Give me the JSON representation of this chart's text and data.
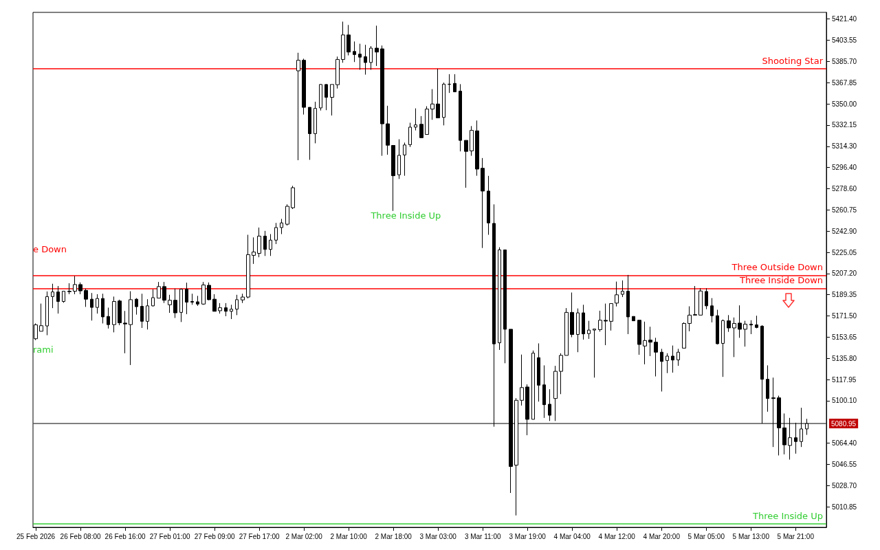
{
  "chart_data": {
    "type": "candlestick",
    "categories": [
      "25 Feb 2026",
      null,
      null,
      null,
      null,
      null,
      null,
      null,
      "26 Feb 08:00",
      null,
      null,
      null,
      null,
      null,
      null,
      null,
      "26 Feb 16:00",
      null,
      null,
      null,
      null,
      null,
      null,
      null,
      "27 Feb 01:00",
      null,
      null,
      null,
      null,
      null,
      null,
      null,
      "27 Feb 09:00",
      null,
      null,
      null,
      null,
      null,
      null,
      null,
      "27 Feb 17:00",
      null,
      null,
      null,
      null,
      null,
      null,
      null,
      "2 Mar 02:00",
      null,
      null,
      null,
      null,
      null,
      null,
      null,
      "2 Mar 10:00",
      null,
      null,
      null,
      null,
      null,
      null,
      null,
      "2 Mar 18:00",
      null,
      null,
      null,
      null,
      null,
      null,
      null,
      "3 Mar 03:00",
      null,
      null,
      null,
      null,
      null,
      null,
      null,
      "3 Mar 11:00",
      null,
      null,
      null,
      null,
      null,
      null,
      null,
      "3 Mar 19:00",
      null,
      null,
      null,
      null,
      null,
      null,
      null,
      "4 Mar 04:00",
      null,
      null,
      null,
      null,
      null,
      null,
      null,
      "4 Mar 12:00",
      null,
      null,
      null,
      null,
      null,
      null,
      null,
      "4 Mar 20:00",
      null,
      null,
      null,
      null,
      null,
      null,
      null,
      "5 Mar 05:00",
      null,
      null,
      null,
      null,
      null,
      null,
      null,
      "5 Mar 13:00",
      null,
      null,
      null,
      null,
      null,
      null,
      null,
      "5 Mar 21:00",
      null,
      null
    ],
    "ohlc": [
      [
        5152.3,
        5165.2,
        5151.2,
        5164.0
      ],
      [
        5158.6,
        5181.9,
        5158.6,
        5163.3
      ],
      [
        5163.1,
        5192.1,
        5155.3,
        5187.8
      ],
      [
        5187.8,
        5198.6,
        5178.1,
        5191.7
      ],
      [
        5191.7,
        5196.7,
        5173.5,
        5183.7
      ],
      [
        5183.7,
        5192.6,
        5182.6,
        5192.3
      ],
      [
        5191.9,
        5199.0,
        5189.8,
        5192.3
      ],
      [
        5192.3,
        5205.1,
        5189.8,
        5197.9
      ],
      [
        5197.9,
        5199.7,
        5189.8,
        5192.6
      ],
      [
        5193.0,
        5194.5,
        5179.1,
        5185.6
      ],
      [
        5185.6,
        5190.8,
        5167.6,
        5178.7
      ],
      [
        5178.7,
        5189.8,
        5173.5,
        5186.2
      ],
      [
        5186.2,
        5190.2,
        5165.2,
        5170.7
      ],
      [
        5171.1,
        5178.5,
        5160.9,
        5164.2
      ],
      [
        5164.2,
        5187.8,
        5157.7,
        5183.7
      ],
      [
        5184.1,
        5185.2,
        5163.7,
        5165.7
      ],
      [
        5165.5,
        5175.7,
        5140.1,
        5164.8
      ],
      [
        5164.2,
        5192.3,
        5130.2,
        5185.2
      ],
      [
        5185.6,
        5186.5,
        5172.6,
        5179.3
      ],
      [
        5179.6,
        5190.2,
        5161.4,
        5167.0
      ],
      [
        5167.0,
        5185.6,
        5160.1,
        5180.0
      ],
      [
        5180.0,
        5194.0,
        5179.5,
        5186.9
      ],
      [
        5186.5,
        5200.1,
        5186.5,
        5196.2
      ],
      [
        5196.2,
        5200.1,
        5182.4,
        5184.7
      ],
      [
        5180.9,
        5189.3,
        5174.1,
        5184.7
      ],
      [
        5184.7,
        5194.5,
        5169.8,
        5174.1
      ],
      [
        5174.5,
        5194.5,
        5166.4,
        5194.0
      ],
      [
        5194.0,
        5199.5,
        5173.0,
        5183.1
      ],
      [
        5183.7,
        5190.2,
        5180.9,
        5183.1
      ],
      [
        5183.4,
        5188.4,
        5180.0,
        5181.5
      ],
      [
        5181.5,
        5200.1,
        5180.9,
        5197.6
      ],
      [
        5197.3,
        5199.7,
        5184.7,
        5185.2
      ],
      [
        5185.6,
        5189.8,
        5175.4,
        5175.4
      ],
      [
        5175.9,
        5182.3,
        5173.5,
        5178.4
      ],
      [
        5178.4,
        5182.3,
        5171.3,
        5175.4
      ],
      [
        5175.4,
        5180.9,
        5168.9,
        5177.2
      ],
      [
        5177.2,
        5189.3,
        5172.2,
        5185.2
      ],
      [
        5185.0,
        5190.2,
        5182.4,
        5187.4
      ],
      [
        5187.4,
        5239.8,
        5186.3,
        5223.1
      ],
      [
        5222.5,
        5237.6,
        5215.3,
        5225.3
      ],
      [
        5224.2,
        5245.9,
        5220.9,
        5238.7
      ],
      [
        5238.7,
        5243.1,
        5222.0,
        5227.5
      ],
      [
        5227.5,
        5240.4,
        5222.0,
        5235.3
      ],
      [
        5235.3,
        5249.8,
        5232.0,
        5245.9
      ],
      [
        5245.9,
        5253.2,
        5240.4,
        5249.8
      ],
      [
        5248.7,
        5265.4,
        5247.6,
        5263.8
      ],
      [
        5262.6,
        5281.0,
        5261.5,
        5279.4
      ],
      [
        5377.8,
        5393.0,
        5302.6,
        5386.7
      ],
      [
        5386.7,
        5388.0,
        5341.0,
        5347.1
      ],
      [
        5347.1,
        5347.1,
        5302.9,
        5324.9
      ],
      [
        5324.9,
        5351.8,
        5316.8,
        5346.2
      ],
      [
        5346.6,
        5366.6,
        5344.4,
        5366.3
      ],
      [
        5366.3,
        5366.6,
        5344.7,
        5355.5
      ],
      [
        5355.5,
        5366.3,
        5340.2,
        5366.3
      ],
      [
        5366.1,
        5389.8,
        5362.9,
        5387.4
      ],
      [
        5387.4,
        5419.2,
        5384.6,
        5408.0
      ],
      [
        5408.0,
        5416.4,
        5390.8,
        5393.6
      ],
      [
        5394.1,
        5402.5,
        5385.2,
        5391.5
      ],
      [
        5391.9,
        5400.6,
        5378.7,
        5389.3
      ],
      [
        5389.7,
        5399.7,
        5374.6,
        5384.8
      ],
      [
        5384.8,
        5398.6,
        5378.7,
        5396.9
      ],
      [
        5396.9,
        5415.8,
        5381.9,
        5393.6
      ],
      [
        5396.3,
        5399.1,
        5306.3,
        5333.2
      ],
      [
        5333.2,
        5348.4,
        5307.2,
        5315.2
      ],
      [
        5315.0,
        5315.0,
        5259.9,
        5289.5
      ],
      [
        5290.3,
        5320.2,
        5286.8,
        5306.7
      ],
      [
        5307.0,
        5317.4,
        5289.5,
        5315.4
      ],
      [
        5315.6,
        5334.1,
        5313.7,
        5330.4
      ],
      [
        5330.4,
        5346.2,
        5327.7,
        5332.3
      ],
      [
        5332.8,
        5339.7,
        5321.5,
        5321.5
      ],
      [
        5324.3,
        5348.0,
        5324.3,
        5345.6
      ],
      [
        5345.6,
        5362.4,
        5336.6,
        5349.9
      ],
      [
        5349.9,
        5379.6,
        5338.2,
        5338.2
      ],
      [
        5338.6,
        5367.9,
        5331.9,
        5366.6
      ],
      [
        5366.4,
        5375.0,
        5359.2,
        5366.6
      ],
      [
        5367.2,
        5375.0,
        5360.1,
        5360.1
      ],
      [
        5360.7,
        5366.6,
        5310.0,
        5319.3
      ],
      [
        5319.3,
        5319.3,
        5279.4,
        5310.0
      ],
      [
        5310.4,
        5331.3,
        5306.3,
        5327.7
      ],
      [
        5327.3,
        5336.0,
        5289.5,
        5295.1
      ],
      [
        5295.8,
        5304.4,
        5228.7,
        5276.6
      ],
      [
        5276.6,
        5289.4,
        5239.8,
        5249.8
      ],
      [
        5249.4,
        5265.4,
        5078.3,
        5148.0
      ],
      [
        5148.9,
        5229.3,
        5142.9,
        5227.1
      ],
      [
        5227.1,
        5227.1,
        5131.7,
        5160.3
      ],
      [
        5160.3,
        5160.3,
        5022.5,
        5044.8
      ],
      [
        5045.9,
        5102.3,
        5003.6,
        5100.5
      ],
      [
        5100.5,
        5139.0,
        5096.1,
        5111.2
      ],
      [
        5111.7,
        5113.9,
        5071.1,
        5084.5
      ],
      [
        5084.5,
        5142.4,
        5084.5,
        5140.2
      ],
      [
        5136.4,
        5148.4,
        5099.4,
        5113.2
      ],
      [
        5113.5,
        5129.9,
        5085.7,
        5096.8
      ],
      [
        5097.2,
        5109.8,
        5083.1,
        5087.9
      ],
      [
        5102.0,
        5129.5,
        5083.1,
        5124.9
      ],
      [
        5124.9,
        5140.1,
        5105.7,
        5138.3
      ],
      [
        5138.3,
        5178.1,
        5138.3,
        5174.5
      ],
      [
        5174.5,
        5191.2,
        5153.6,
        5155.9
      ],
      [
        5155.9,
        5177.8,
        5141.0,
        5174.1
      ],
      [
        5174.1,
        5180.9,
        5151.6,
        5156.4
      ],
      [
        5156.6,
        5167.4,
        5152.2,
        5159.6
      ],
      [
        5159.6,
        5160.5,
        5119.6,
        5160.5
      ],
      [
        5160.0,
        5175.9,
        5158.3,
        5167.9
      ],
      [
        5167.8,
        5181.9,
        5146.9,
        5167.2
      ],
      [
        5167.0,
        5181.9,
        5159.2,
        5181.9
      ],
      [
        5182.3,
        5200.4,
        5179.5,
        5189.3
      ],
      [
        5189.7,
        5201.4,
        5187.4,
        5192.3
      ],
      [
        5192.3,
        5206.0,
        5156.2,
        5170.7
      ],
      [
        5171.1,
        5171.1,
        5167.4,
        5167.4
      ],
      [
        5167.9,
        5167.9,
        5138.8,
        5147.5
      ],
      [
        5146.2,
        5166.7,
        5130.8,
        5150.8
      ],
      [
        5151.2,
        5162.4,
        5137.7,
        5149.4
      ],
      [
        5149.4,
        5153.1,
        5120.6,
        5141.0
      ],
      [
        5141.0,
        5143.8,
        5107.9,
        5133.2
      ],
      [
        5134.0,
        5140.1,
        5123.4,
        5137.7
      ],
      [
        5137.7,
        5146.6,
        5123.8,
        5134.4
      ],
      [
        5134.5,
        5143.8,
        5129.5,
        5141.0
      ],
      [
        5144.4,
        5166.1,
        5144.4,
        5165.2
      ],
      [
        5165.2,
        5179.6,
        5158.6,
        5172.2
      ],
      [
        5172.6,
        5196.7,
        5172.2,
        5172.2
      ],
      [
        5172.2,
        5194.8,
        5172.2,
        5192.5
      ],
      [
        5192.1,
        5194.8,
        5177.2,
        5180.0
      ],
      [
        5180.0,
        5186.5,
        5166.1,
        5171.7
      ],
      [
        5171.7,
        5176.7,
        5147.5,
        5148.1
      ],
      [
        5148.4,
        5168.5,
        5120.2,
        5167.6
      ],
      [
        5167.4,
        5172.2,
        5158.1,
        5161.4
      ],
      [
        5161.4,
        5170.2,
        5136.9,
        5165.2
      ],
      [
        5165.5,
        5180.4,
        5153.1,
        5160.3
      ],
      [
        5160.3,
        5167.4,
        5145.7,
        5164.6
      ],
      [
        5164.6,
        5167.9,
        5156.2,
        5163.9
      ],
      [
        5164.0,
        5171.7,
        5161.1,
        5161.8
      ],
      [
        5162.9,
        5163.7,
        5081.0,
        5118.2
      ],
      [
        5118.2,
        5129.9,
        5090.9,
        5102.0
      ],
      [
        5102.6,
        5119.6,
        5061.2,
        5102.0
      ],
      [
        5102.6,
        5104.4,
        5054.1,
        5077.3
      ],
      [
        5077.3,
        5089.4,
        5055.0,
        5063.0
      ],
      [
        5062.5,
        5085.7,
        5050.6,
        5069.0
      ],
      [
        5069.0,
        5081.6,
        5055.6,
        5065.8
      ],
      [
        5065.8,
        5094.2,
        5061.2,
        5076.4
      ],
      [
        5076.4,
        5084.9,
        5071.4,
        5080.95
      ]
    ],
    "ylim": [
      4993.6,
      5427.0
    ],
    "yticks": [
      {
        "value": 5421.4,
        "label": "5421.40"
      },
      {
        "value": 5403.55,
        "label": "5403.55"
      },
      {
        "value": 5385.7,
        "label": "5385.70"
      },
      {
        "value": 5367.85,
        "label": "5367.85"
      },
      {
        "value": 5350,
        "label": "5350.00"
      },
      {
        "value": 5332.15,
        "label": "5332.15"
      },
      {
        "value": 5314.3,
        "label": "5314.30"
      },
      {
        "value": 5296.4,
        "label": "5296.40"
      },
      {
        "value": 5278.6,
        "label": "5278.60"
      },
      {
        "value": 5260.75,
        "label": "5260.75"
      },
      {
        "value": 5242.9,
        "label": "5242.90"
      },
      {
        "value": 5225.05,
        "label": "5225.05"
      },
      {
        "value": 5207.2,
        "label": "5207.20"
      },
      {
        "value": 5189.35,
        "label": "5189.35"
      },
      {
        "value": 5171.5,
        "label": "5171.50"
      },
      {
        "value": 5153.65,
        "label": "5153.65"
      },
      {
        "value": 5135.8,
        "label": "5135.80"
      },
      {
        "value": 5117.95,
        "label": "5117.95"
      },
      {
        "value": 5100.1,
        "label": "5100.10"
      },
      {
        "value": 5064.4,
        "label": "5064.40"
      },
      {
        "value": 5046.55,
        "label": "5046.55"
      },
      {
        "value": 5028.7,
        "label": "5028.70"
      },
      {
        "value": 5010.85,
        "label": "5010.85"
      }
    ],
    "ref_lines": [
      {
        "axis": "y",
        "value": 5379.6,
        "label": "Shooting Star",
        "color": "#ff0000"
      },
      {
        "axis": "y",
        "value": 5205.8,
        "label": "Three Outside Down",
        "color": "#ff0000"
      },
      {
        "axis": "y",
        "value": 5194.7,
        "label": "Three Inside Down",
        "color": "#ff0000"
      },
      {
        "axis": "y",
        "value": 4996.4,
        "label": "Three Inside Up",
        "color": "#32cd32"
      },
      {
        "axis": "y",
        "value": 5080.95,
        "label": "5080.95",
        "color": "#555555"
      }
    ],
    "annotations": [
      "Three Inside Up",
      "e Down",
      "rami"
    ]
  }
}
